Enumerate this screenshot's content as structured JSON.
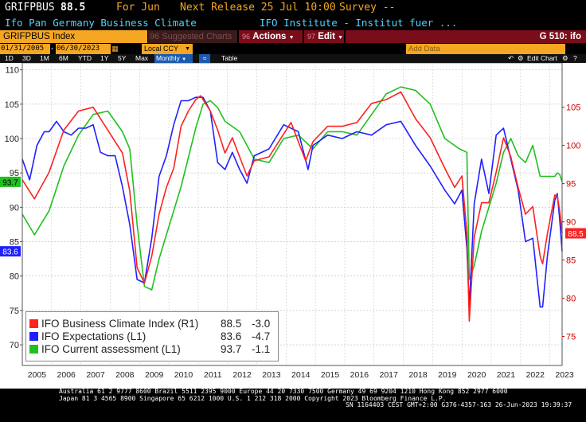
{
  "header": {
    "ticker": "GRIFPBUS",
    "last": "88.5",
    "for_label": "For Jun",
    "next_release": "Next Release 25 Jul 10:00",
    "survey": "Survey --",
    "name": "Ifo Pan Germany Business Climate",
    "source": "IFO Institute - Institut fuer ..."
  },
  "toolbar": {
    "index_label": "GRIFPBUS Index",
    "suggested_num": "96",
    "suggested": "Suggested Charts",
    "actions_num": "96",
    "actions": "Actions",
    "edit_num": "97",
    "edit": "Edit",
    "page_code": "G 510: ifo"
  },
  "range": {
    "start": "01/31/2005",
    "end": "06/30/2023",
    "currency": "Local CCY",
    "add_data": "Add Data"
  },
  "controls": {
    "periods": [
      "1D",
      "3D",
      "1M",
      "6M",
      "YTD",
      "1Y",
      "5Y",
      "Max"
    ],
    "frequency": "Monthly",
    "table": "Table",
    "edit_chart": "Edit Chart"
  },
  "chart_data": {
    "type": "line",
    "x_start": "2005-01",
    "x_end": "2023-06",
    "xtick_labels": [
      "2005",
      "2006",
      "2007",
      "2008",
      "2009",
      "2010",
      "2011",
      "2012",
      "2013",
      "2014",
      "2015",
      "2016",
      "2017",
      "2018",
      "2019",
      "2020",
      "2021",
      "2022",
      "2023"
    ],
    "left_axis": {
      "ylim": [
        67,
        111
      ],
      "ticks": [
        70,
        75,
        80,
        85,
        90,
        95,
        100,
        105,
        110
      ]
    },
    "right_axis": {
      "ylim": [
        71.2,
        110.8
      ],
      "ticks": [
        75,
        80,
        85,
        90,
        95,
        100,
        105
      ]
    },
    "grid": true,
    "legend_position": "bottom-left",
    "series": [
      {
        "name": "IFO Business Climate Index (R1)",
        "axis": "right",
        "color": "#ff2020",
        "last": "88.5",
        "change": "-3.0",
        "points": [
          [
            "2005-01",
            95.5
          ],
          [
            "2005-06",
            93.0
          ],
          [
            "2005-12",
            96.5
          ],
          [
            "2006-06",
            102.0
          ],
          [
            "2006-12",
            104.5
          ],
          [
            "2007-06",
            105.0
          ],
          [
            "2007-12",
            102.0
          ],
          [
            "2008-06",
            99.0
          ],
          [
            "2008-09",
            94.0
          ],
          [
            "2008-12",
            84.0
          ],
          [
            "2009-03",
            82.0
          ],
          [
            "2009-06",
            85.5
          ],
          [
            "2009-09",
            91.0
          ],
          [
            "2009-12",
            94.5
          ],
          [
            "2010-03",
            97.0
          ],
          [
            "2010-06",
            102.5
          ],
          [
            "2010-09",
            104.5
          ],
          [
            "2010-12",
            106.0
          ],
          [
            "2011-02",
            106.5
          ],
          [
            "2011-06",
            104.5
          ],
          [
            "2011-09",
            102.0
          ],
          [
            "2011-12",
            99.0
          ],
          [
            "2012-03",
            101.0
          ],
          [
            "2012-06",
            98.5
          ],
          [
            "2012-09",
            96.0
          ],
          [
            "2012-12",
            98.0
          ],
          [
            "2013-06",
            98.5
          ],
          [
            "2013-12",
            101.5
          ],
          [
            "2014-03",
            103.0
          ],
          [
            "2014-09",
            98.0
          ],
          [
            "2014-12",
            100.5
          ],
          [
            "2015-06",
            102.5
          ],
          [
            "2015-12",
            102.5
          ],
          [
            "2016-06",
            103.0
          ],
          [
            "2016-12",
            105.5
          ],
          [
            "2017-06",
            106.0
          ],
          [
            "2017-12",
            107.0
          ],
          [
            "2018-06",
            103.5
          ],
          [
            "2018-12",
            101.0
          ],
          [
            "2019-06",
            97.0
          ],
          [
            "2019-10",
            94.5
          ],
          [
            "2020-01",
            96.0
          ],
          [
            "2020-03",
            88.5
          ],
          [
            "2020-04",
            77.0
          ],
          [
            "2020-06",
            88.0
          ],
          [
            "2020-09",
            92.5
          ],
          [
            "2020-12",
            92.5
          ],
          [
            "2021-03",
            96.5
          ],
          [
            "2021-06",
            101.0
          ],
          [
            "2021-09",
            98.5
          ],
          [
            "2021-12",
            94.5
          ],
          [
            "2022-03",
            91.0
          ],
          [
            "2022-06",
            92.0
          ],
          [
            "2022-09",
            85.5
          ],
          [
            "2022-10",
            84.5
          ],
          [
            "2022-12",
            88.5
          ],
          [
            "2023-03",
            93.5
          ],
          [
            "2023-04",
            93.4
          ],
          [
            "2023-05",
            91.5
          ],
          [
            "2023-06",
            88.5
          ]
        ]
      },
      {
        "name": "IFO Expectations (L1)",
        "axis": "left",
        "color": "#2020ff",
        "last": "83.6",
        "change": "-4.7",
        "points": [
          [
            "2005-01",
            97.0
          ],
          [
            "2005-04",
            94.0
          ],
          [
            "2005-07",
            99.0
          ],
          [
            "2005-10",
            101.0
          ],
          [
            "2005-12",
            101.0
          ],
          [
            "2006-03",
            102.5
          ],
          [
            "2006-06",
            101.0
          ],
          [
            "2006-09",
            100.5
          ],
          [
            "2006-12",
            101.5
          ],
          [
            "2007-03",
            101.5
          ],
          [
            "2007-06",
            102.0
          ],
          [
            "2007-09",
            98.0
          ],
          [
            "2007-12",
            97.5
          ],
          [
            "2008-03",
            97.5
          ],
          [
            "2008-06",
            93.0
          ],
          [
            "2008-09",
            87.5
          ],
          [
            "2008-12",
            79.5
          ],
          [
            "2009-03",
            79.0
          ],
          [
            "2009-06",
            85.5
          ],
          [
            "2009-09",
            94.5
          ],
          [
            "2009-12",
            97.5
          ],
          [
            "2010-03",
            102.0
          ],
          [
            "2010-06",
            105.5
          ],
          [
            "2010-09",
            105.5
          ],
          [
            "2010-12",
            106.0
          ],
          [
            "2011-03",
            106.0
          ],
          [
            "2011-06",
            104.0
          ],
          [
            "2011-09",
            96.5
          ],
          [
            "2011-12",
            95.5
          ],
          [
            "2012-03",
            98.0
          ],
          [
            "2012-06",
            95.5
          ],
          [
            "2012-09",
            93.5
          ],
          [
            "2012-12",
            97.5
          ],
          [
            "2013-06",
            98.5
          ],
          [
            "2013-12",
            102.0
          ],
          [
            "2014-06",
            101.0
          ],
          [
            "2014-10",
            95.5
          ],
          [
            "2014-12",
            99.0
          ],
          [
            "2015-06",
            100.5
          ],
          [
            "2015-12",
            100.0
          ],
          [
            "2016-06",
            101.0
          ],
          [
            "2016-12",
            100.5
          ],
          [
            "2017-06",
            102.0
          ],
          [
            "2017-12",
            102.5
          ],
          [
            "2018-06",
            99.0
          ],
          [
            "2018-12",
            96.0
          ],
          [
            "2019-06",
            92.5
          ],
          [
            "2019-10",
            90.5
          ],
          [
            "2020-01",
            92.5
          ],
          [
            "2020-03",
            84.0
          ],
          [
            "2020-04",
            75.5
          ],
          [
            "2020-06",
            90.5
          ],
          [
            "2020-09",
            97.0
          ],
          [
            "2020-12",
            92.0
          ],
          [
            "2021-03",
            100.5
          ],
          [
            "2021-06",
            101.5
          ],
          [
            "2021-09",
            97.0
          ],
          [
            "2021-12",
            92.5
          ],
          [
            "2022-03",
            85.0
          ],
          [
            "2022-06",
            85.5
          ],
          [
            "2022-09",
            75.5
          ],
          [
            "2022-10",
            75.5
          ],
          [
            "2022-12",
            83.0
          ],
          [
            "2023-03",
            91.0
          ],
          [
            "2023-04",
            92.0
          ],
          [
            "2023-05",
            88.3
          ],
          [
            "2023-06",
            83.6
          ]
        ]
      },
      {
        "name": "IFO Current assessment (L1)",
        "axis": "left",
        "color": "#20c020",
        "last": "93.7",
        "change": "-1.1",
        "points": [
          [
            "2005-01",
            89.0
          ],
          [
            "2005-06",
            86.0
          ],
          [
            "2005-12",
            89.5
          ],
          [
            "2006-06",
            96.0
          ],
          [
            "2006-12",
            100.5
          ],
          [
            "2007-06",
            103.5
          ],
          [
            "2007-12",
            104.0
          ],
          [
            "2008-06",
            101.0
          ],
          [
            "2008-09",
            98.5
          ],
          [
            "2008-12",
            87.5
          ],
          [
            "2009-03",
            78.5
          ],
          [
            "2009-06",
            78.0
          ],
          [
            "2009-09",
            82.5
          ],
          [
            "2009-12",
            86.0
          ],
          [
            "2010-06",
            93.0
          ],
          [
            "2010-12",
            101.5
          ],
          [
            "2011-03",
            105.0
          ],
          [
            "2011-06",
            105.5
          ],
          [
            "2011-09",
            104.5
          ],
          [
            "2011-12",
            102.5
          ],
          [
            "2012-06",
            101.0
          ],
          [
            "2012-12",
            97.0
          ],
          [
            "2013-06",
            96.5
          ],
          [
            "2013-12",
            100.0
          ],
          [
            "2014-06",
            100.5
          ],
          [
            "2014-12",
            98.5
          ],
          [
            "2015-06",
            101.0
          ],
          [
            "2015-12",
            101.0
          ],
          [
            "2016-06",
            100.5
          ],
          [
            "2016-12",
            103.5
          ],
          [
            "2017-06",
            106.5
          ],
          [
            "2017-12",
            107.5
          ],
          [
            "2018-06",
            107.0
          ],
          [
            "2018-12",
            105.0
          ],
          [
            "2019-06",
            100.0
          ],
          [
            "2019-12",
            98.5
          ],
          [
            "2020-03",
            98.0
          ],
          [
            "2020-04",
            79.5
          ],
          [
            "2020-06",
            81.5
          ],
          [
            "2020-09",
            86.5
          ],
          [
            "2020-12",
            90.0
          ],
          [
            "2021-03",
            93.5
          ],
          [
            "2021-06",
            98.0
          ],
          [
            "2021-09",
            100.0
          ],
          [
            "2021-12",
            97.5
          ],
          [
            "2022-03",
            96.5
          ],
          [
            "2022-06",
            99.0
          ],
          [
            "2022-09",
            94.5
          ],
          [
            "2022-12",
            94.5
          ],
          [
            "2023-03",
            94.5
          ],
          [
            "2023-04",
            95.0
          ],
          [
            "2023-05",
            94.8
          ],
          [
            "2023-06",
            93.7
          ]
        ]
      }
    ]
  },
  "footer": {
    "line1": "Australia 61 2 9777 8600 Brazil 5511 2395 9000 Europe 44 20 7330 7500 Germany 49 69 9204 1210 Hong Kong 852 2977 6000",
    "line2": "Japan 81 3 4565 8900        Singapore 65 6212 1000         U.S. 1 212 318 2000          Copyright 2023 Bloomberg Finance L.P.",
    "line3": "SN 1164403 CEST GMT+2:00 G376-4357-163 26-Jun-2023 19:39:37"
  }
}
